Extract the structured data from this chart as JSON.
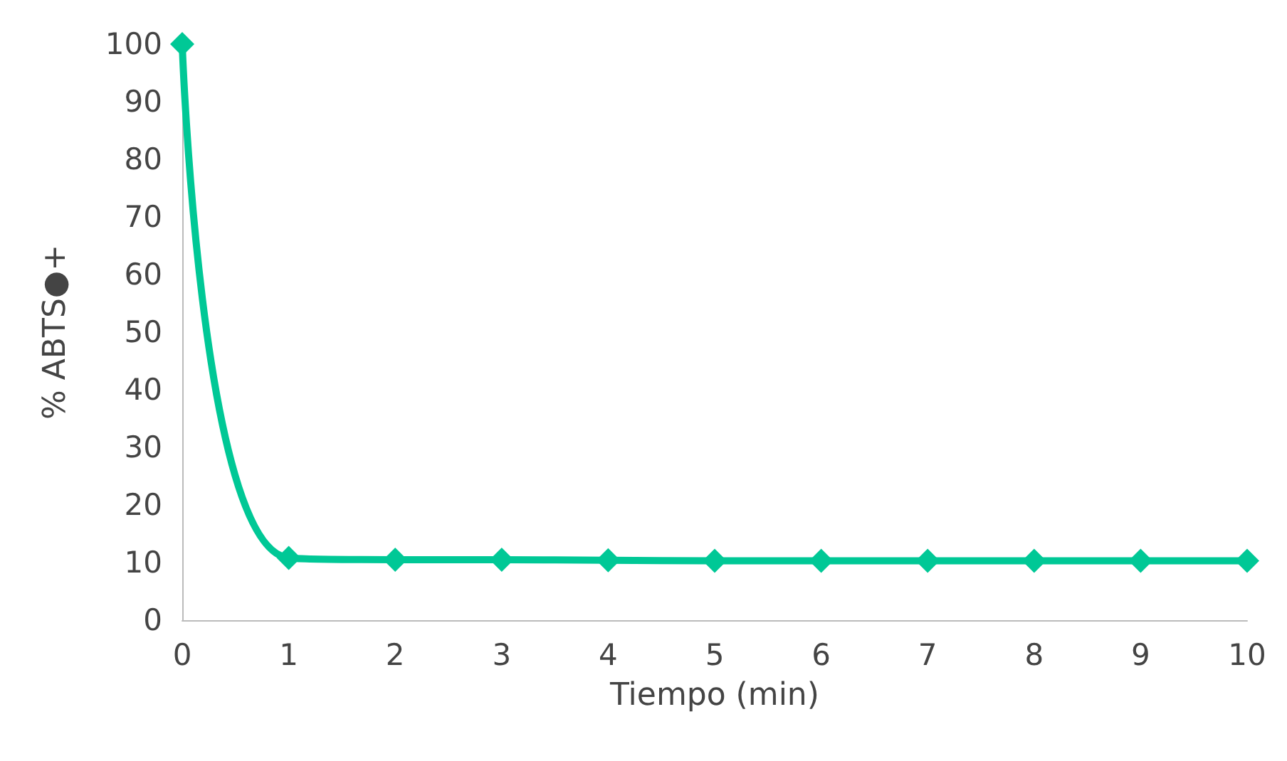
{
  "chart_data": {
    "type": "line",
    "xlabel": "Tiempo (min)",
    "ylabel": "% ABTS●+",
    "x": [
      0,
      1,
      2,
      3,
      4,
      5,
      6,
      7,
      8,
      9,
      10
    ],
    "series": [
      {
        "color": "#00c896",
        "values": [
          100,
          10.8,
          10.5,
          10.5,
          10.4,
          10.3,
          10.3,
          10.3,
          10.3,
          10.3,
          10.3
        ]
      }
    ],
    "xlim": [
      0,
      10
    ],
    "xticks": [
      0,
      1,
      2,
      3,
      4,
      5,
      6,
      7,
      8,
      9,
      10
    ],
    "ylim": [
      0,
      100
    ],
    "yticks": [
      0,
      10,
      20,
      30,
      40,
      50,
      60,
      70,
      80,
      90,
      100
    ],
    "marker": "diamond",
    "line_style": "solid"
  }
}
